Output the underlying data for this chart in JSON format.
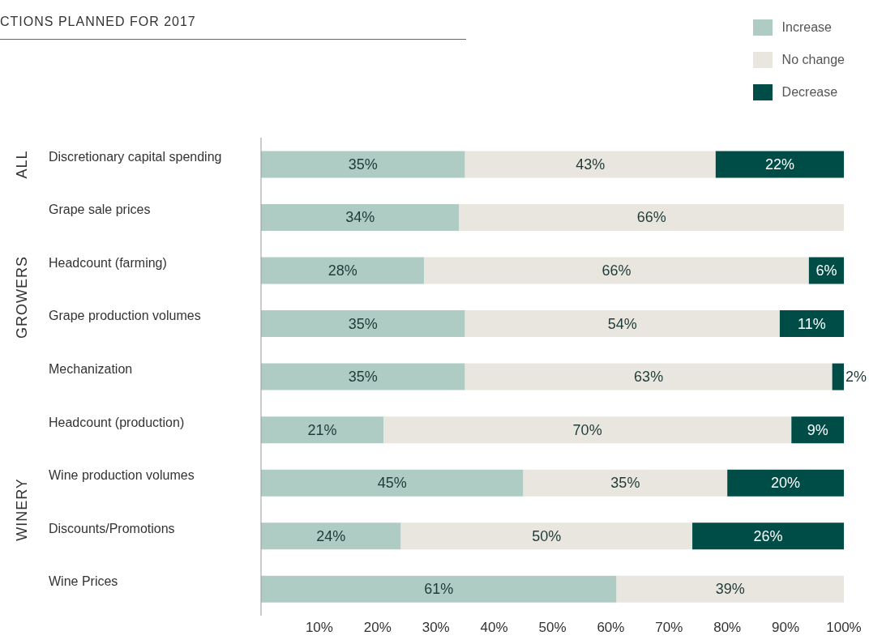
{
  "chart_data": {
    "type": "bar",
    "orientation": "horizontal",
    "stacked": true,
    "title": "CTIONS PLANNED FOR 2017",
    "categories": [
      "Discretionary capital spending",
      "Grape sale prices",
      "Headcount (farming)",
      "Grape production volumes",
      "Mechanization",
      "Headcount (production)",
      "Wine production volumes",
      "Discounts/Promotions",
      "Wine Prices"
    ],
    "series": [
      {
        "name": "Increase",
        "color": "#aecbc4",
        "values": [
          35,
          34,
          28,
          35,
          35,
          21,
          45,
          24,
          61
        ],
        "value_labels": [
          "35%",
          "34%",
          "28%",
          "35%",
          "35%",
          "21%",
          "45%",
          "24%",
          "61%"
        ]
      },
      {
        "name": "No change",
        "color": "#e9e6df",
        "values": [
          43,
          66,
          66,
          54,
          63,
          70,
          35,
          50,
          39
        ],
        "value_labels": [
          "43%",
          "66%",
          "66%",
          "54%",
          "63%",
          "70%",
          "35%",
          "50%",
          "39%"
        ]
      },
      {
        "name": "Decrease",
        "color": "#004d47",
        "values": [
          22,
          null,
          6,
          11,
          2,
          9,
          20,
          26,
          null
        ],
        "value_labels": [
          "22%",
          null,
          "6%",
          "11%",
          "2%",
          "9%",
          "20%",
          "26%",
          null
        ]
      }
    ],
    "annotations": [
      "ALL",
      "GROWERS",
      "WINERY"
    ],
    "xlim": [
      0,
      100
    ],
    "xticks": [
      {
        "value": 10,
        "label": "10%"
      },
      {
        "value": 20,
        "label": "20%"
      },
      {
        "value": 30,
        "label": "30%"
      },
      {
        "value": 40,
        "label": "40%"
      },
      {
        "value": 50,
        "label": "50%"
      },
      {
        "value": 60,
        "label": "60%"
      },
      {
        "value": 70,
        "label": "70%"
      },
      {
        "value": 80,
        "label": "80%"
      },
      {
        "value": 90,
        "label": "90%"
      },
      {
        "value": 100,
        "label": "100%"
      }
    ],
    "legend": "top right",
    "grid": false
  }
}
